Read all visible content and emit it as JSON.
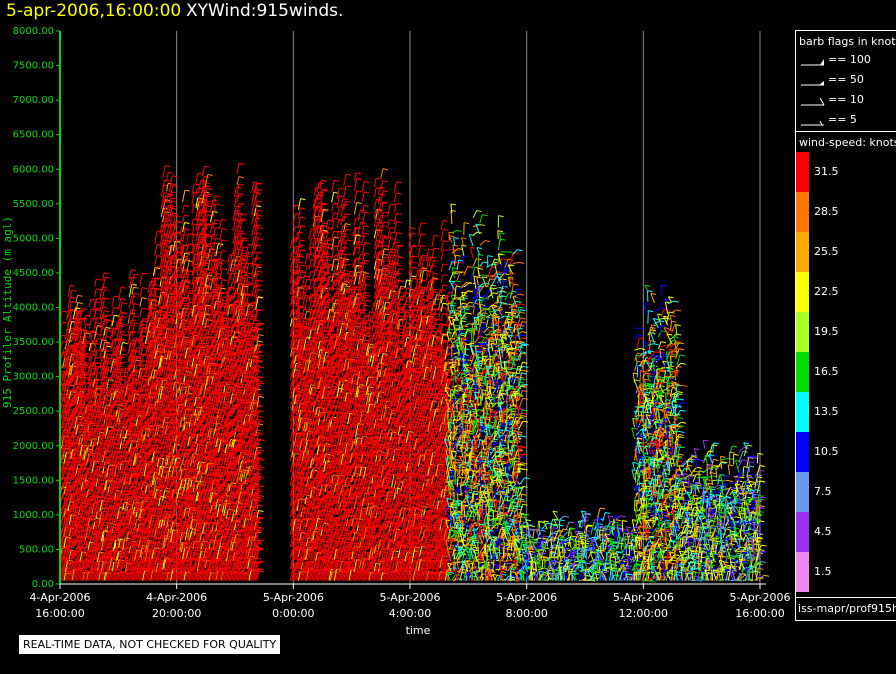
{
  "title": {
    "time": "5-apr-2006,16:00:00",
    "name": "XYWind:915winds."
  },
  "colors": {
    "axis_y": "#00dd00",
    "grid": "#888888",
    "background": "#000000"
  },
  "legend_barbs": {
    "header": "barb flags in knots",
    "items": [
      {
        "label": "== 100",
        "kind": "flag"
      },
      {
        "label": "== 50",
        "kind": "pennant"
      },
      {
        "label": "== 10",
        "kind": "full"
      },
      {
        "label": "== 5",
        "kind": "half"
      }
    ]
  },
  "legend_speed": {
    "header": "wind-speed: knots",
    "bins": [
      {
        "label": "31.5",
        "color": "#ff0000"
      },
      {
        "label": "28.5",
        "color": "#ff7700"
      },
      {
        "label": "25.5",
        "color": "#ffaa00"
      },
      {
        "label": "22.5",
        "color": "#ffff00"
      },
      {
        "label": "19.5",
        "color": "#aaff22"
      },
      {
        "label": "16.5",
        "color": "#00dd00"
      },
      {
        "label": "13.5",
        "color": "#00ffff"
      },
      {
        "label": "10.5",
        "color": "#0000ff"
      },
      {
        "label": "7.5",
        "color": "#6699ee"
      },
      {
        "label": "4.5",
        "color": "#9933ee"
      },
      {
        "label": "1.5",
        "color": "#ee88ee"
      }
    ]
  },
  "source": "iss-mapr/prof915h",
  "quality_note": "REAL-TIME DATA, NOT CHECKED FOR QUALITY",
  "chart_data": {
    "type": "scatter",
    "xlabel": "time",
    "ylabel": "915 Profiler Altitude (m agl)",
    "ylim": [
      0,
      8000
    ],
    "yticks": [
      "0.00",
      "500.00",
      "1000.00",
      "1500.00",
      "2000.00",
      "2500.00",
      "3000.00",
      "3500.00",
      "4000.00",
      "4500.00",
      "5000.00",
      "5500.00",
      "6000.00",
      "6500.00",
      "7000.00",
      "7500.00",
      "8000.00"
    ],
    "xlim_hours": [
      16,
      40
    ],
    "xticks": [
      {
        "h": 16,
        "date": "4-Apr-2006",
        "time": "16:00:00"
      },
      {
        "h": 20,
        "date": "4-Apr-2006",
        "time": "20:00:00"
      },
      {
        "h": 24,
        "date": "5-Apr-2006",
        "time": "0:00:00"
      },
      {
        "h": 28,
        "date": "5-Apr-2006",
        "time": "4:00:00"
      },
      {
        "h": 32,
        "date": "5-Apr-2006",
        "time": "8:00:00"
      },
      {
        "h": 36,
        "date": "5-Apr-2006",
        "time": "12:00:00"
      },
      {
        "h": 40,
        "date": "5-Apr-2006",
        "time": "16:00:00"
      }
    ],
    "grid": "vertical",
    "series": [
      {
        "h0": 16.0,
        "h1": 19.2,
        "top": 4600,
        "profile": "strong"
      },
      {
        "h0": 19.2,
        "h1": 22.8,
        "top": 6000,
        "profile": "strong"
      },
      {
        "h0": 23.9,
        "h1": 27.6,
        "top": 5900,
        "profile": "strong"
      },
      {
        "h0": 27.6,
        "h1": 29.3,
        "top": 5500,
        "profile": "strong"
      },
      {
        "h0": 29.3,
        "h1": 31.8,
        "top": 5500,
        "profile": "mixed"
      },
      {
        "h0": 31.8,
        "h1": 35.7,
        "top": 1000,
        "profile": "weak"
      },
      {
        "h0": 35.7,
        "h1": 37.2,
        "top": 4300,
        "profile": "mixed"
      },
      {
        "h0": 37.2,
        "h1": 40.0,
        "top": 2000,
        "profile": "weak"
      }
    ]
  }
}
